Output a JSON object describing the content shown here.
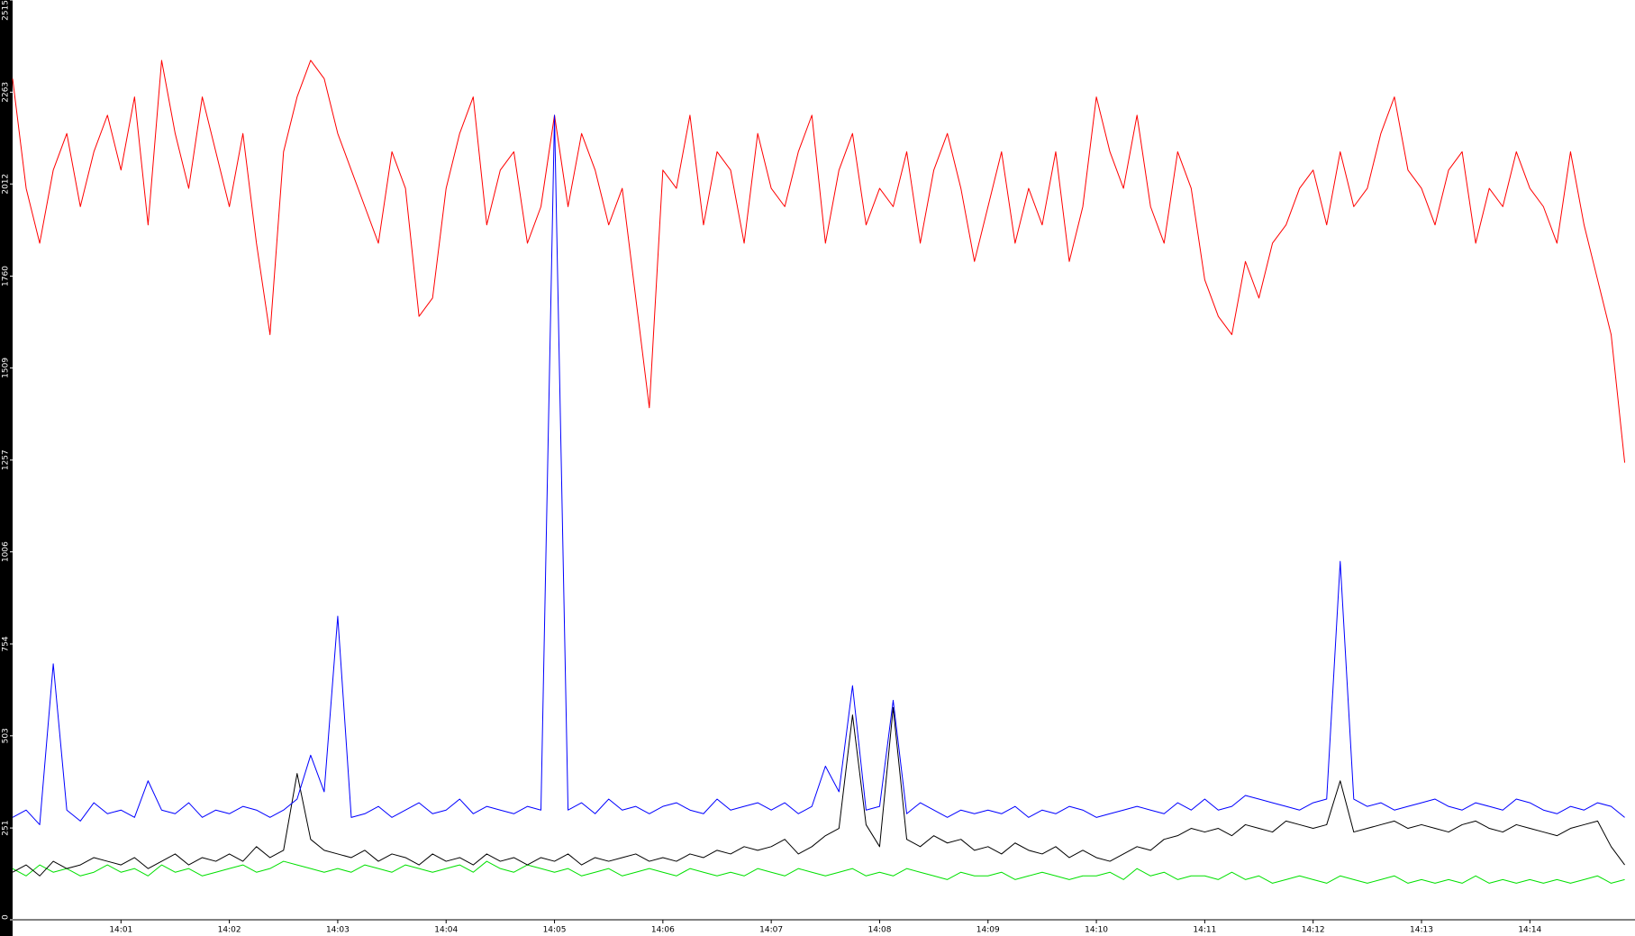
{
  "chart_data": {
    "type": "line",
    "x": [
      0,
      0.125,
      0.25,
      0.375,
      0.5,
      0.625,
      0.75,
      0.875,
      1,
      1.125,
      1.25,
      1.375,
      1.5,
      1.625,
      1.75,
      1.875,
      2,
      2.125,
      2.25,
      2.375,
      2.5,
      2.625,
      2.75,
      2.875,
      3,
      3.125,
      3.25,
      3.375,
      3.5,
      3.625,
      3.75,
      3.875,
      4,
      4.125,
      4.25,
      4.375,
      4.5,
      4.625,
      4.75,
      4.875,
      5,
      5.125,
      5.25,
      5.375,
      5.5,
      5.625,
      5.75,
      5.875,
      6,
      6.125,
      6.25,
      6.375,
      6.5,
      6.625,
      6.75,
      6.875,
      7,
      7.125,
      7.25,
      7.375,
      7.5,
      7.625,
      7.75,
      7.875,
      8,
      8.125,
      8.25,
      8.375,
      8.5,
      8.625,
      8.75,
      8.875,
      9,
      9.125,
      9.25,
      9.375,
      9.5,
      9.625,
      9.75,
      9.875,
      10,
      10.125,
      10.25,
      10.375,
      10.5,
      10.625,
      10.75,
      10.875,
      11,
      11.125,
      11.25,
      11.375,
      11.5,
      11.625,
      11.75,
      11.875,
      12,
      12.125,
      12.25,
      12.375,
      12.5,
      12.625,
      12.75,
      12.875,
      13,
      13.125,
      13.25,
      13.375,
      13.5,
      13.625,
      13.75,
      13.875,
      14,
      14.125,
      14.25,
      14.375,
      14.5,
      14.625,
      14.75,
      14.875
    ],
    "series": [
      {
        "color": "#ff0000",
        "values": [
          2300,
          2000,
          1850,
          2050,
          2150,
          1950,
          2100,
          2200,
          2050,
          2250,
          1900,
          2350,
          2150,
          2000,
          2250,
          2100,
          1950,
          2150,
          1850,
          1600,
          2100,
          2250,
          2350,
          2300,
          2150,
          2050,
          1950,
          1850,
          2100,
          2000,
          1650,
          1700,
          2000,
          2150,
          2250,
          1900,
          2050,
          2100,
          1850,
          1950,
          2200,
          1950,
          2150,
          2050,
          1900,
          2000,
          1700,
          1400,
          2050,
          2000,
          2200,
          1900,
          2100,
          2050,
          1850,
          2150,
          2000,
          1950,
          2100,
          2200,
          1850,
          2050,
          2150,
          1900,
          2000,
          1950,
          2100,
          1850,
          2050,
          2150,
          2000,
          1800,
          1950,
          2100,
          1850,
          2000,
          1900,
          2100,
          1800,
          1950,
          2250,
          2100,
          2000,
          2200,
          1950,
          1850,
          2100,
          2000,
          1750,
          1650,
          1600,
          1800,
          1700,
          1850,
          1900,
          2000,
          2050,
          1900,
          2100,
          1950,
          2000,
          2150,
          2250,
          2050,
          2000,
          1900,
          2050,
          2100,
          1850,
          2000,
          1950,
          2100,
          2000,
          1950,
          1850,
          2100,
          1900,
          1750,
          1600,
          1250
        ]
      },
      {
        "color": "#00e000",
        "values": [
          140,
          120,
          150,
          130,
          140,
          120,
          130,
          150,
          130,
          140,
          120,
          150,
          130,
          140,
          120,
          130,
          140,
          150,
          130,
          140,
          160,
          150,
          140,
          130,
          140,
          130,
          150,
          140,
          130,
          150,
          140,
          130,
          140,
          150,
          130,
          160,
          140,
          130,
          150,
          140,
          130,
          140,
          120,
          130,
          140,
          120,
          130,
          140,
          130,
          120,
          140,
          130,
          120,
          130,
          120,
          140,
          130,
          120,
          140,
          130,
          120,
          130,
          140,
          120,
          130,
          120,
          140,
          130,
          120,
          110,
          130,
          120,
          120,
          130,
          110,
          120,
          130,
          120,
          110,
          120,
          120,
          130,
          110,
          140,
          120,
          130,
          110,
          120,
          120,
          110,
          130,
          110,
          120,
          100,
          110,
          120,
          110,
          100,
          120,
          110,
          100,
          110,
          120,
          100,
          110,
          100,
          110,
          100,
          120,
          100,
          110,
          100,
          110,
          100,
          110,
          100,
          110,
          120,
          100,
          110
        ]
      },
      {
        "color": "#000000",
        "values": [
          130,
          150,
          120,
          160,
          140,
          150,
          170,
          160,
          150,
          170,
          140,
          160,
          180,
          150,
          170,
          160,
          180,
          160,
          200,
          170,
          190,
          400,
          220,
          190,
          180,
          170,
          190,
          160,
          180,
          170,
          150,
          180,
          160,
          170,
          150,
          180,
          160,
          170,
          150,
          170,
          160,
          180,
          150,
          170,
          160,
          170,
          180,
          160,
          170,
          160,
          180,
          170,
          190,
          180,
          200,
          190,
          200,
          220,
          180,
          200,
          230,
          250,
          560,
          260,
          200,
          580,
          220,
          200,
          230,
          210,
          220,
          190,
          200,
          180,
          210,
          190,
          180,
          200,
          170,
          190,
          170,
          160,
          180,
          200,
          190,
          220,
          230,
          250,
          240,
          250,
          230,
          260,
          250,
          240,
          270,
          260,
          250,
          260,
          380,
          240,
          250,
          260,
          270,
          250,
          260,
          250,
          240,
          260,
          270,
          250,
          240,
          260,
          250,
          240,
          230,
          250,
          260,
          270,
          200,
          150
        ]
      },
      {
        "color": "#0000ff",
        "values": [
          280,
          300,
          260,
          700,
          300,
          270,
          320,
          290,
          300,
          280,
          380,
          300,
          290,
          320,
          280,
          300,
          290,
          310,
          300,
          280,
          300,
          330,
          450,
          350,
          830,
          280,
          290,
          310,
          280,
          300,
          320,
          290,
          300,
          330,
          290,
          310,
          300,
          290,
          310,
          300,
          2200,
          300,
          320,
          290,
          330,
          300,
          310,
          290,
          310,
          320,
          300,
          290,
          330,
          300,
          310,
          320,
          300,
          320,
          290,
          310,
          420,
          350,
          640,
          300,
          310,
          600,
          290,
          320,
          300,
          280,
          300,
          290,
          300,
          290,
          310,
          280,
          300,
          290,
          310,
          300,
          280,
          290,
          300,
          310,
          300,
          290,
          320,
          300,
          330,
          300,
          310,
          340,
          330,
          320,
          310,
          300,
          320,
          330,
          980,
          330,
          310,
          320,
          300,
          310,
          320,
          330,
          310,
          300,
          320,
          310,
          300,
          330,
          320,
          300,
          290,
          310,
          300,
          320,
          310,
          280
        ]
      }
    ],
    "xlim": [
      0,
      14.97
    ],
    "xticks": [
      {
        "value": 1,
        "label": "14:01"
      },
      {
        "value": 2,
        "label": "14:02"
      },
      {
        "value": 3,
        "label": "14:03"
      },
      {
        "value": 4,
        "label": "14:04"
      },
      {
        "value": 5,
        "label": "14:05"
      },
      {
        "value": 6,
        "label": "14:06"
      },
      {
        "value": 7,
        "label": "14:07"
      },
      {
        "value": 8,
        "label": "14:08"
      },
      {
        "value": 9,
        "label": "14:09"
      },
      {
        "value": 10,
        "label": "14:10"
      },
      {
        "value": 11,
        "label": "14:11"
      },
      {
        "value": 12,
        "label": "14:12"
      },
      {
        "value": 13,
        "label": "14:13"
      },
      {
        "value": 14,
        "label": "14:14"
      }
    ],
    "ylim": [
      0,
      2515
    ],
    "yticks": [
      0,
      251,
      503,
      754,
      1006,
      1257,
      1509,
      1760,
      2012,
      2263,
      2515
    ]
  }
}
